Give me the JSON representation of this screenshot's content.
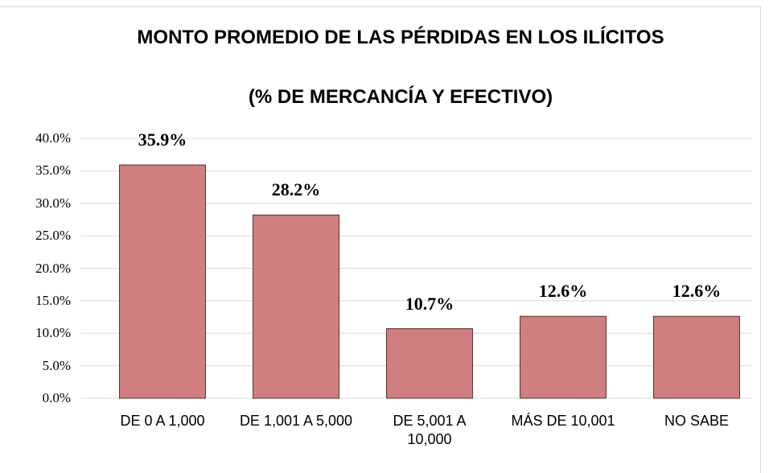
{
  "chart_data": {
    "type": "bar",
    "title": "MONTO PROMEDIO DE LAS PÉRDIDAS EN LOS ILÍCITOS",
    "subtitle": "(% DE MERCANCÍA Y EFECTIVO)",
    "categories": [
      "DE 0 A 1,000",
      "DE 1,001 A 5,000",
      "DE 5,001 A 10,000",
      "MÁS DE 10,001",
      "NO SABE"
    ],
    "values": [
      35.9,
      28.2,
      10.7,
      12.6,
      12.6
    ],
    "value_labels": [
      "35.9%",
      "28.2%",
      "10.7%",
      "12.6%",
      "12.6%"
    ],
    "color": "#d07f7f",
    "ylim": [
      0,
      40
    ],
    "yticks": [
      {
        "value": 0,
        "label": "0.0%"
      },
      {
        "value": 5,
        "label": "5.0%"
      },
      {
        "value": 10,
        "label": "10.0%"
      },
      {
        "value": 15,
        "label": "15.0%"
      },
      {
        "value": 20,
        "label": "20.0%"
      },
      {
        "value": 25,
        "label": "25.0%"
      },
      {
        "value": 30,
        "label": "30.0%"
      },
      {
        "value": 35,
        "label": "35.0%"
      },
      {
        "value": 40,
        "label": "40.0%"
      }
    ],
    "grid": true
  }
}
